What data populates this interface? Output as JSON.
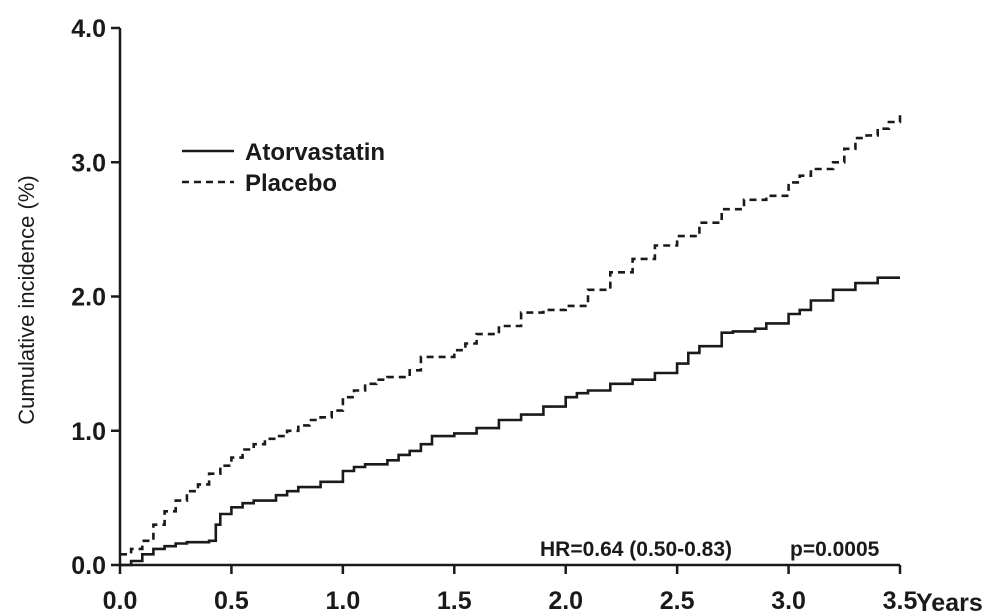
{
  "chart_data": {
    "type": "line",
    "title": "",
    "xlabel": "Years",
    "ylabel": "Cumulative incidence (%)",
    "xlim": [
      0,
      3.5
    ],
    "ylim": [
      0,
      4.0
    ],
    "x_ticks": [
      "0.0",
      "0.5",
      "1.0",
      "1.5",
      "2.0",
      "2.5",
      "3.0",
      "3.5"
    ],
    "y_ticks": [
      "0.0",
      "1.0",
      "2.0",
      "3.0",
      "4.0"
    ],
    "grid": false,
    "legend_position": "upper-left",
    "annotation_hr": "HR=0.64 (0.50-0.83)",
    "annotation_p": "p=0.0005",
    "series": [
      {
        "name": "Atorvastatin",
        "line_style": "solid",
        "x": [
          0.0,
          0.05,
          0.1,
          0.15,
          0.2,
          0.25,
          0.3,
          0.35,
          0.4,
          0.43,
          0.45,
          0.5,
          0.55,
          0.6,
          0.7,
          0.75,
          0.8,
          0.9,
          1.0,
          1.05,
          1.1,
          1.2,
          1.25,
          1.3,
          1.35,
          1.4,
          1.5,
          1.6,
          1.7,
          1.8,
          1.9,
          2.0,
          2.05,
          2.1,
          2.2,
          2.3,
          2.4,
          2.5,
          2.55,
          2.6,
          2.7,
          2.75,
          2.85,
          2.9,
          3.0,
          3.05,
          3.1,
          3.2,
          3.3,
          3.4,
          3.5
        ],
        "y": [
          0.0,
          0.03,
          0.08,
          0.12,
          0.14,
          0.16,
          0.17,
          0.17,
          0.18,
          0.3,
          0.38,
          0.43,
          0.46,
          0.48,
          0.52,
          0.55,
          0.58,
          0.62,
          0.7,
          0.73,
          0.75,
          0.78,
          0.82,
          0.85,
          0.9,
          0.96,
          0.98,
          1.02,
          1.08,
          1.12,
          1.18,
          1.25,
          1.28,
          1.3,
          1.35,
          1.38,
          1.43,
          1.5,
          1.58,
          1.63,
          1.73,
          1.74,
          1.76,
          1.8,
          1.87,
          1.9,
          1.97,
          2.05,
          2.1,
          2.14,
          2.14
        ]
      },
      {
        "name": "Placebo",
        "line_style": "dashed",
        "x": [
          0.0,
          0.05,
          0.1,
          0.15,
          0.2,
          0.25,
          0.3,
          0.35,
          0.4,
          0.45,
          0.5,
          0.55,
          0.6,
          0.65,
          0.7,
          0.75,
          0.8,
          0.85,
          0.9,
          0.95,
          1.0,
          1.05,
          1.1,
          1.15,
          1.2,
          1.3,
          1.35,
          1.4,
          1.5,
          1.55,
          1.6,
          1.7,
          1.8,
          1.9,
          2.0,
          2.1,
          2.2,
          2.3,
          2.4,
          2.5,
          2.6,
          2.7,
          2.8,
          2.9,
          3.0,
          3.05,
          3.1,
          3.2,
          3.25,
          3.3,
          3.35,
          3.4,
          3.45,
          3.5
        ],
        "y": [
          0.08,
          0.12,
          0.18,
          0.3,
          0.4,
          0.48,
          0.55,
          0.6,
          0.68,
          0.74,
          0.8,
          0.86,
          0.9,
          0.94,
          0.96,
          1.0,
          1.04,
          1.08,
          1.1,
          1.15,
          1.25,
          1.3,
          1.35,
          1.38,
          1.4,
          1.45,
          1.55,
          1.55,
          1.6,
          1.65,
          1.72,
          1.78,
          1.88,
          1.9,
          1.93,
          2.05,
          2.18,
          2.28,
          2.38,
          2.45,
          2.55,
          2.65,
          2.72,
          2.75,
          2.85,
          2.9,
          2.95,
          3.0,
          3.1,
          3.18,
          3.2,
          3.25,
          3.3,
          3.35
        ]
      }
    ]
  }
}
